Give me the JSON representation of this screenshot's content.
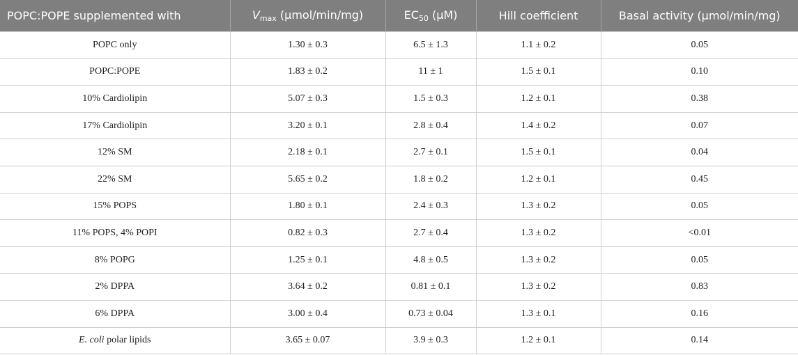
{
  "table": {
    "header": [
      "POPC:POPE supplemented with",
      {
        "base": "V",
        "sub": "max",
        "unit": "(μmol/min/mg)"
      },
      {
        "base": "EC",
        "sub": "50",
        "unit": "(μM)"
      },
      "Hill coefficient",
      "Basal activity (μmol/min/mg)"
    ],
    "rows": [
      [
        "POPC only",
        "1.30 ± 0.3",
        "6.5 ± 1.3",
        "1.1 ± 0.2",
        "0.05"
      ],
      [
        "POPC:POPE",
        "1.83 ± 0.2",
        "11 ± 1",
        "1.5 ± 0.1",
        "0.10"
      ],
      [
        "10% Cardiolipin",
        "5.07 ± 0.3",
        "1.5 ± 0.3",
        "1.2 ± 0.1",
        "0.38"
      ],
      [
        "17% Cardiolipin",
        "3.20 ± 0.1",
        "2.8 ± 0.4",
        "1.4 ± 0.2",
        "0.07"
      ],
      [
        "12% SM",
        "2.18 ± 0.1",
        "2.7 ± 0.1",
        "1.5 ± 0.1",
        "0.04"
      ],
      [
        "22% SM",
        "5.65 ± 0.2",
        "1.8 ± 0.2",
        "1.2 ± 0.1",
        "0.45"
      ],
      [
        "15% POPS",
        "1.80 ± 0.1",
        "2.4 ± 0.3",
        "1.3 ± 0.2",
        "0.05"
      ],
      [
        "11% POPS, 4% POPI",
        "0.82 ± 0.3",
        "2.7 ± 0.4",
        "1.3 ± 0.2",
        "<0.01"
      ],
      [
        "8% POPG",
        "1.25 ± 0.1",
        "4.8 ± 0.5",
        "1.3 ± 0.2",
        "0.05"
      ],
      [
        "2% DPPA",
        "3.64 ± 0.2",
        "0.81 ± 0.1",
        "1.3 ± 0.2",
        "0.83"
      ],
      [
        "6% DPPA",
        "3.00 ± 0.4",
        "0.73 ± 0.04",
        "1.3 ± 0.1",
        "0.16"
      ],
      [
        {
          "italic": "E. coli",
          "rest": "polar lipids"
        },
        "3.65 ± 0.07",
        "3.9 ± 0.3",
        "1.2 ± 0.1",
        "0.14"
      ]
    ]
  }
}
